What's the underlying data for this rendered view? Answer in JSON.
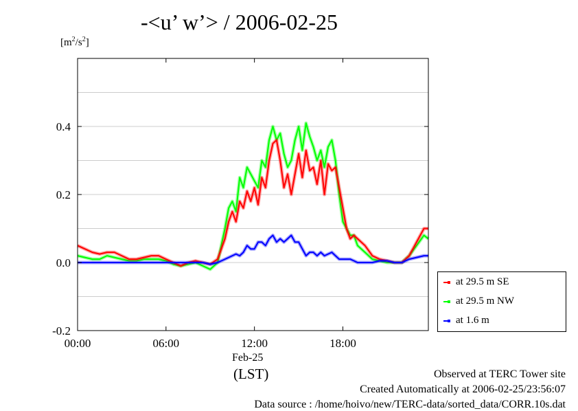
{
  "title": "-<u’ w’> / 2006-02-25",
  "unit_main": "[m",
  "unit_sup1": "2",
  "unit_mid": "/s",
  "unit_sup2": "2",
  "unit_end": "]",
  "x_date_label": "Feb-25",
  "x_timezone_label": "(LST)",
  "footer": {
    "line1": "Observed at TERC Tower site",
    "line2": "Created Automatically at 2006-02-25/23:56:07",
    "line3": "Data source : /home/hoivo/new/TERC-data/sorted_data/CORR.10s.dat"
  },
  "colors": {
    "series_se": "#ff0000",
    "series_nw": "#00ff00",
    "series_16": "#0000ff",
    "grid": "#999999"
  },
  "chart_data": {
    "type": "line",
    "title": "-<u’ w’> / 2006-02-25",
    "ylabel": "[m2/s2]",
    "xlabel": "(LST)",
    "xlim": [
      0,
      23.8
    ],
    "ylim": [
      -0.2,
      0.6
    ],
    "grid": true,
    "legend_position": "bottom-right outside",
    "x_ticks": [
      0,
      6,
      12,
      18
    ],
    "x_tick_labels": [
      "00:00",
      "06:00",
      "12:00",
      "18:00"
    ],
    "y_ticks": [
      -0.2,
      0.0,
      0.2,
      0.4
    ],
    "y_tick_labels": [
      "-0.2",
      "0.0",
      "0.2",
      "0.4"
    ],
    "x": [
      0,
      0.5,
      1,
      1.5,
      2,
      2.5,
      3,
      3.5,
      4,
      4.5,
      5,
      5.5,
      6,
      6.5,
      7,
      7.5,
      8,
      8.5,
      9,
      9.5,
      10,
      10.25,
      10.5,
      10.75,
      11,
      11.25,
      11.5,
      11.75,
      12,
      12.25,
      12.5,
      12.75,
      13,
      13.25,
      13.5,
      13.75,
      14,
      14.25,
      14.5,
      14.75,
      15,
      15.25,
      15.5,
      15.75,
      16,
      16.25,
      16.5,
      16.75,
      17,
      17.25,
      17.5,
      17.75,
      18,
      18.25,
      18.5,
      18.75,
      19,
      19.5,
      20,
      20.5,
      21,
      21.5,
      22,
      22.5,
      23,
      23.5,
      23.8
    ],
    "series": [
      {
        "name": "at 29.5 m SE",
        "values": [
          0.05,
          0.04,
          0.03,
          0.025,
          0.03,
          0.03,
          0.02,
          0.01,
          0.01,
          0.015,
          0.02,
          0.02,
          0.01,
          0.0,
          -0.01,
          0.0,
          0.005,
          0.0,
          -0.005,
          0.01,
          0.07,
          0.12,
          0.15,
          0.12,
          0.18,
          0.16,
          0.21,
          0.18,
          0.22,
          0.17,
          0.25,
          0.22,
          0.3,
          0.35,
          0.36,
          0.3,
          0.22,
          0.26,
          0.2,
          0.26,
          0.32,
          0.25,
          0.33,
          0.27,
          0.28,
          0.23,
          0.3,
          0.2,
          0.29,
          0.27,
          0.28,
          0.22,
          0.16,
          0.1,
          0.07,
          0.08,
          0.07,
          0.05,
          0.02,
          0.01,
          0.005,
          0.0,
          0.0,
          0.02,
          0.06,
          0.1,
          0.1
        ]
      },
      {
        "name": "at 29.5 m NW",
        "values": [
          0.02,
          0.015,
          0.01,
          0.01,
          0.02,
          0.015,
          0.01,
          0.005,
          0.005,
          0.01,
          0.01,
          0.01,
          0.005,
          -0.005,
          -0.01,
          -0.005,
          0.0,
          -0.01,
          -0.02,
          0.0,
          0.1,
          0.16,
          0.18,
          0.15,
          0.25,
          0.22,
          0.28,
          0.26,
          0.24,
          0.22,
          0.3,
          0.28,
          0.36,
          0.4,
          0.36,
          0.38,
          0.32,
          0.28,
          0.3,
          0.36,
          0.4,
          0.33,
          0.41,
          0.37,
          0.34,
          0.3,
          0.33,
          0.28,
          0.34,
          0.36,
          0.3,
          0.2,
          0.12,
          0.1,
          0.08,
          0.08,
          0.05,
          0.03,
          0.01,
          0.005,
          0.0,
          0.0,
          0.0,
          0.02,
          0.05,
          0.08,
          0.07
        ]
      },
      {
        "name": "at 1.6 m",
        "values": [
          0.0,
          0.0,
          0.0,
          0.0,
          0.0,
          0.0,
          0.0,
          0.0,
          0.0,
          0.0,
          0.0,
          0.0,
          0.0,
          0.0,
          0.0,
          0.0,
          0.0,
          0.0,
          -0.005,
          0.0,
          0.01,
          0.015,
          0.02,
          0.025,
          0.02,
          0.03,
          0.05,
          0.04,
          0.04,
          0.06,
          0.06,
          0.05,
          0.07,
          0.08,
          0.06,
          0.07,
          0.06,
          0.07,
          0.08,
          0.06,
          0.06,
          0.04,
          0.02,
          0.03,
          0.03,
          0.02,
          0.03,
          0.02,
          0.025,
          0.03,
          0.02,
          0.01,
          0.01,
          0.01,
          0.01,
          0.005,
          0.0,
          0.0,
          0.0,
          0.005,
          0.005,
          0.0,
          0.0,
          0.01,
          0.015,
          0.02,
          0.02
        ]
      }
    ]
  }
}
